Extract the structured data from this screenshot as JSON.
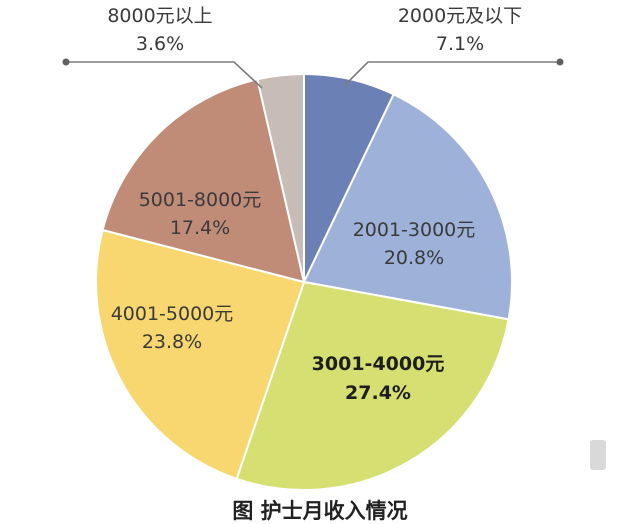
{
  "chart_data": {
    "type": "pie",
    "title": "图 护士月收入情况",
    "slices": [
      {
        "label": "2000元及以下",
        "value": 7.1,
        "value_text": "7.1%",
        "color": "#6b80b5"
      },
      {
        "label": "2001-3000元",
        "value": 20.8,
        "value_text": "20.8%",
        "color": "#9db1d9"
      },
      {
        "label": "3001-4000元",
        "value": 27.4,
        "value_text": "27.4%",
        "color": "#d5df72"
      },
      {
        "label": "4001-5000元",
        "value": 23.8,
        "value_text": "23.8%",
        "color": "#f8d771"
      },
      {
        "label": "5001-8000元",
        "value": 17.4,
        "value_text": "17.4%",
        "color": "#c08c78"
      },
      {
        "label": "8000元以上",
        "value": 3.6,
        "value_text": "3.6%",
        "color": "#c8bcb7"
      }
    ]
  }
}
